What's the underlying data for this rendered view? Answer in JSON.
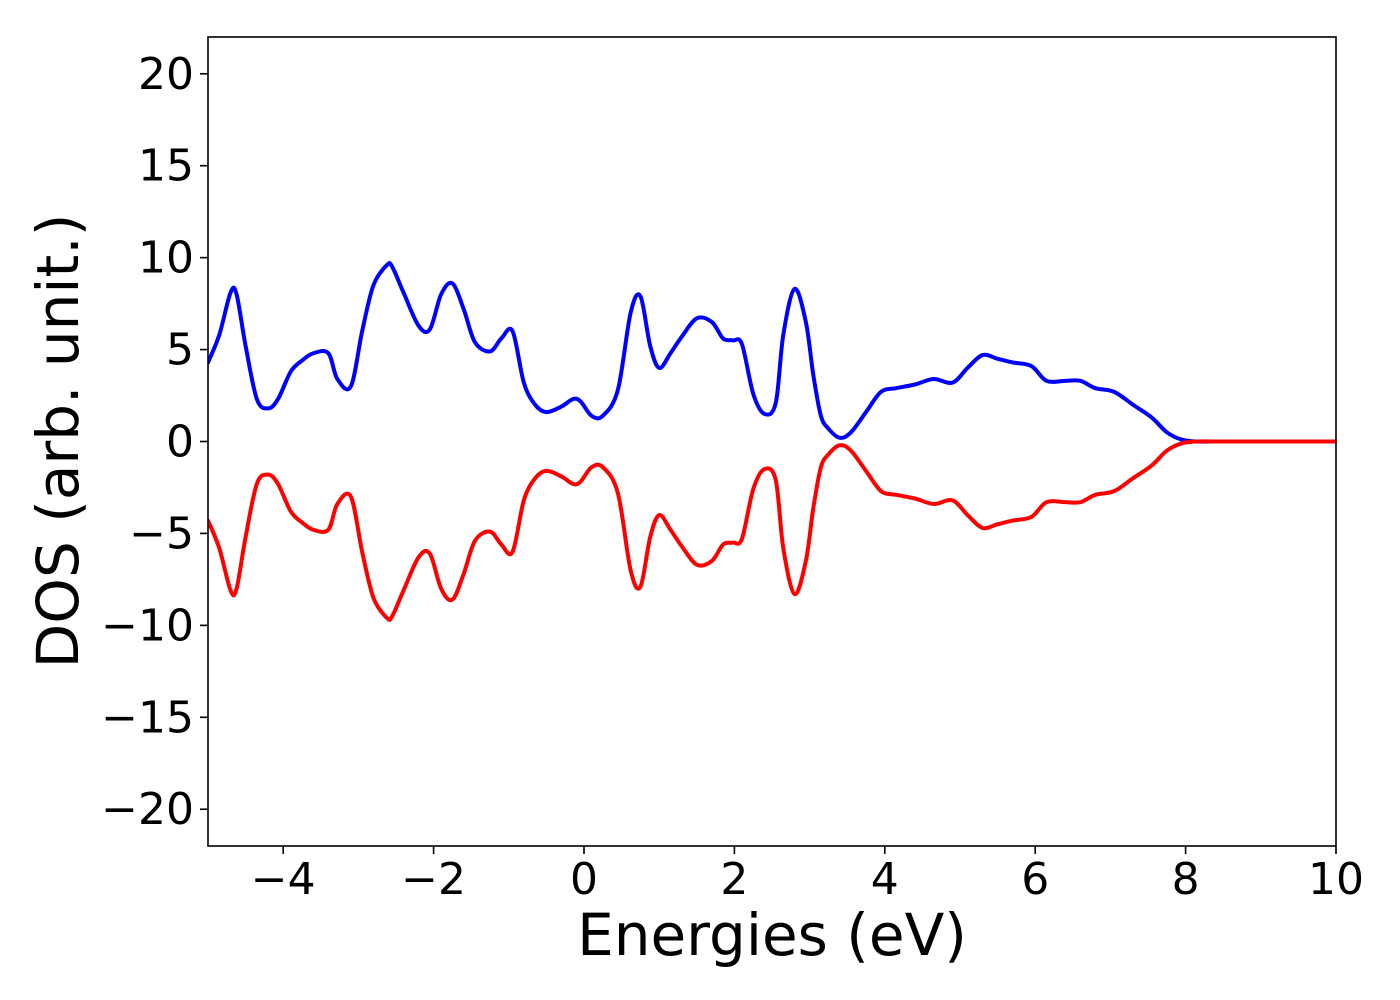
{
  "chart_data": {
    "type": "line",
    "xlabel": "Energies (eV)",
    "ylabel": "DOS (arb. unit.)",
    "xlim": [
      -5,
      10
    ],
    "ylim": [
      -22,
      22
    ],
    "x_ticks": [
      -4,
      -2,
      0,
      2,
      4,
      6,
      8,
      10
    ],
    "x_tick_labels": [
      "−4",
      "−2",
      "0",
      "2",
      "4",
      "6",
      "8",
      "10"
    ],
    "y_ticks": [
      20,
      15,
      10,
      5,
      0,
      -5,
      -10,
      -15,
      -20
    ],
    "y_tick_labels": [
      "20",
      "15",
      "10",
      "5",
      "0",
      "−5",
      "−10",
      "−15",
      "−20"
    ],
    "grid": false,
    "series": [
      {
        "color": "#0000ff",
        "x": [
          -5.0,
          -4.85,
          -4.7,
          -4.62,
          -4.5,
          -4.35,
          -4.2,
          -4.07,
          -3.9,
          -3.75,
          -3.6,
          -3.4,
          -3.28,
          -3.1,
          -2.95,
          -2.8,
          -2.62,
          -2.55,
          -2.4,
          -2.2,
          -2.05,
          -1.9,
          -1.75,
          -1.6,
          -1.45,
          -1.25,
          -1.1,
          -0.95,
          -0.8,
          -0.65,
          -0.5,
          -0.3,
          -0.15,
          -0.05,
          0.1,
          0.25,
          0.45,
          0.62,
          0.75,
          0.88,
          1.0,
          1.15,
          1.3,
          1.5,
          1.7,
          1.85,
          1.98,
          2.1,
          2.25,
          2.4,
          2.55,
          2.65,
          2.8,
          2.95,
          3.05,
          3.15,
          3.25,
          3.4,
          3.55,
          3.75,
          3.95,
          4.15,
          4.4,
          4.65,
          4.9,
          5.1,
          5.3,
          5.5,
          5.7,
          5.95,
          6.15,
          6.4,
          6.6,
          6.8,
          7.05,
          7.3,
          7.55,
          7.75,
          7.95,
          8.15,
          8.35,
          8.6,
          9.0,
          10.0
        ],
        "y": [
          4.3,
          5.8,
          8.1,
          8.0,
          5.2,
          2.3,
          1.8,
          2.3,
          3.8,
          4.4,
          4.8,
          4.8,
          3.4,
          3.0,
          6.0,
          8.5,
          9.6,
          9.5,
          8.1,
          6.3,
          6.1,
          8.0,
          8.6,
          7.2,
          5.4,
          4.9,
          5.6,
          6.0,
          3.2,
          2.0,
          1.6,
          1.9,
          2.3,
          2.2,
          1.4,
          1.4,
          2.8,
          7.0,
          7.9,
          5.2,
          4.0,
          4.8,
          5.7,
          6.7,
          6.5,
          5.6,
          5.5,
          5.3,
          2.6,
          1.5,
          2.1,
          5.8,
          8.3,
          6.5,
          3.6,
          1.4,
          0.7,
          0.2,
          0.5,
          1.6,
          2.7,
          2.9,
          3.1,
          3.4,
          3.2,
          4.0,
          4.7,
          4.5,
          4.3,
          4.1,
          3.3,
          3.3,
          3.3,
          2.9,
          2.7,
          2.0,
          1.3,
          0.5,
          0.1,
          0.0,
          0.0,
          0.0,
          0.0,
          0.0
        ]
      },
      {
        "color": "#ff0000",
        "x": [
          -5.0,
          -4.85,
          -4.7,
          -4.62,
          -4.5,
          -4.35,
          -4.2,
          -4.07,
          -3.9,
          -3.75,
          -3.6,
          -3.4,
          -3.28,
          -3.1,
          -2.95,
          -2.8,
          -2.62,
          -2.55,
          -2.4,
          -2.2,
          -2.05,
          -1.9,
          -1.75,
          -1.6,
          -1.45,
          -1.25,
          -1.1,
          -0.95,
          -0.8,
          -0.65,
          -0.5,
          -0.3,
          -0.15,
          -0.05,
          0.1,
          0.25,
          0.45,
          0.62,
          0.75,
          0.88,
          1.0,
          1.15,
          1.3,
          1.5,
          1.7,
          1.85,
          1.98,
          2.1,
          2.25,
          2.4,
          2.55,
          2.65,
          2.8,
          2.95,
          3.05,
          3.15,
          3.25,
          3.4,
          3.55,
          3.75,
          3.95,
          4.15,
          4.4,
          4.65,
          4.9,
          5.1,
          5.3,
          5.5,
          5.7,
          5.95,
          6.15,
          6.4,
          6.6,
          6.8,
          7.05,
          7.3,
          7.55,
          7.75,
          7.95,
          8.15,
          8.35,
          8.6,
          9.0,
          10.0
        ],
        "y": [
          -4.3,
          -5.8,
          -8.1,
          -8.0,
          -5.2,
          -2.3,
          -1.8,
          -2.3,
          -3.8,
          -4.4,
          -4.8,
          -4.8,
          -3.4,
          -3.0,
          -6.0,
          -8.5,
          -9.6,
          -9.5,
          -8.1,
          -6.3,
          -6.1,
          -8.0,
          -8.6,
          -7.2,
          -5.4,
          -4.9,
          -5.6,
          -6.0,
          -3.2,
          -2.0,
          -1.6,
          -1.9,
          -2.3,
          -2.2,
          -1.4,
          -1.4,
          -2.8,
          -7.0,
          -7.9,
          -5.2,
          -4.0,
          -4.8,
          -5.7,
          -6.7,
          -6.5,
          -5.6,
          -5.5,
          -5.3,
          -2.6,
          -1.5,
          -2.1,
          -5.8,
          -8.3,
          -6.5,
          -3.6,
          -1.4,
          -0.7,
          -0.2,
          -0.5,
          -1.6,
          -2.7,
          -2.9,
          -3.1,
          -3.4,
          -3.2,
          -4.0,
          -4.7,
          -4.5,
          -4.3,
          -4.1,
          -3.3,
          -3.3,
          -3.3,
          -2.9,
          -2.7,
          -2.0,
          -1.3,
          -0.5,
          -0.1,
          0.0,
          0.0,
          0.0,
          0.0,
          0.0
        ]
      }
    ]
  }
}
